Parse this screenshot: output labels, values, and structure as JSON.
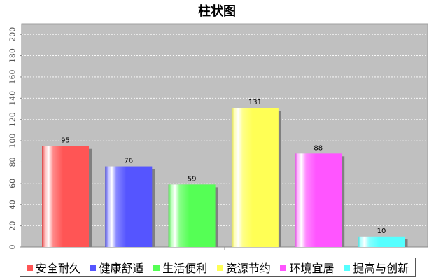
{
  "chart_data": {
    "type": "bar",
    "title": "柱状图",
    "xlabel": "",
    "ylabel": "",
    "ylim": [
      0,
      210
    ],
    "yticks": [
      0,
      20,
      40,
      60,
      80,
      100,
      120,
      140,
      160,
      180,
      200
    ],
    "grid": true,
    "legend_position": "bottom",
    "categories": [
      "安全耐久",
      "健康舒适",
      "生活便利",
      "资源节约",
      "环境宜居",
      "提高与创新"
    ],
    "values": [
      95,
      76,
      59,
      131,
      88,
      10
    ],
    "colors": [
      "#ff5555",
      "#5555ff",
      "#55ff55",
      "#ffff55",
      "#ff55ff",
      "#55ffff"
    ],
    "plot_background": "#c0c0c0"
  }
}
